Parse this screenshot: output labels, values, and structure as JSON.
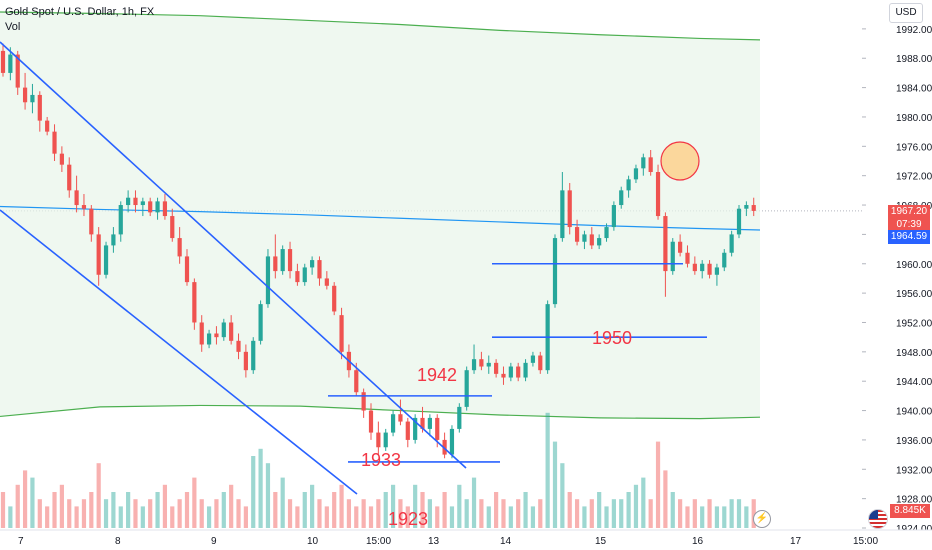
{
  "header": {
    "symbol": "Gold Spot / U.S. Dollar, 1h, FX",
    "volume_label": "Vol",
    "currency": "USD"
  },
  "price_badges": {
    "last_price": "1967.20",
    "countdown": "07:39",
    "ma_value": "1964.59",
    "volume_value": "8.845K"
  },
  "colors": {
    "up": "#26a69a",
    "down": "#ef5350",
    "trendline": "#2962ff",
    "level_line": "#2962ff",
    "annotation_text": "#f23645",
    "ma_line": "#2196f3",
    "envelope_line": "#4caf50",
    "envelope_fill": "#e8f5e9",
    "highlight_circle_fill": "#ffcc80",
    "highlight_circle_border": "#f23645",
    "price_badge_up": "#ef5350",
    "price_badge_ma": "#2962ff"
  },
  "icons": {
    "flag": "us-flag-icon",
    "lightning": "lightning-icon"
  },
  "chart_data": {
    "type": "candlestick",
    "price_axis": {
      "ticks": [
        1992,
        1988,
        1984,
        1980,
        1976,
        1972,
        1968,
        1964,
        1960,
        1956,
        1952,
        1948,
        1944,
        1940,
        1936,
        1932,
        1928,
        1924
      ],
      "tick_labels": [
        "1992.00",
        "1988.00",
        "1984.00",
        "1980.00",
        "1976.00",
        "1972.00",
        "1968.00",
        "",
        "1960.00",
        "1956.00",
        "1952.00",
        "1948.00",
        "1944.00",
        "1940.00",
        "1936.00",
        "1932.00",
        "1928.00",
        "1924.00"
      ],
      "range": [
        1923.5,
        1994.5
      ]
    },
    "time_axis": {
      "labels": [
        "7",
        "8",
        "9",
        "10",
        "15:00",
        "13",
        "14",
        "15",
        "16",
        "17",
        "15:00"
      ]
    },
    "annotations": [
      {
        "text": "1942",
        "price": 1942
      },
      {
        "text": "1933",
        "price": 1933
      },
      {
        "text": "1923",
        "price": 1923
      },
      {
        "text": "1950",
        "price": 1950
      }
    ],
    "horizontal_levels": [
      {
        "price": 1942
      },
      {
        "price": 1933
      },
      {
        "price": 1960
      },
      {
        "price": 1950
      }
    ],
    "ohlc": [
      [
        1989.0,
        1990.0,
        1985.5,
        1986.0
      ],
      [
        1986.0,
        1989.5,
        1985.0,
        1988.5
      ],
      [
        1988.5,
        1989.0,
        1983.0,
        1984.0
      ],
      [
        1984.0,
        1986.0,
        1981.0,
        1982.0
      ],
      [
        1982.0,
        1984.5,
        1980.5,
        1983.0
      ],
      [
        1983.0,
        1983.5,
        1978.0,
        1979.5
      ],
      [
        1979.5,
        1980.0,
        1977.5,
        1978.0
      ],
      [
        1978.0,
        1979.0,
        1974.0,
        1975.0
      ],
      [
        1975.0,
        1976.0,
        1972.5,
        1973.5
      ],
      [
        1973.5,
        1974.5,
        1969.0,
        1970.0
      ],
      [
        1970.0,
        1972.0,
        1967.0,
        1968.0
      ],
      [
        1968.0,
        1969.5,
        1966.5,
        1967.5
      ],
      [
        1967.5,
        1968.0,
        1963.0,
        1964.0
      ],
      [
        1964.0,
        1965.0,
        1957.0,
        1958.5
      ],
      [
        1958.5,
        1963.0,
        1958.0,
        1962.5
      ],
      [
        1962.5,
        1965.0,
        1961.5,
        1964.0
      ],
      [
        1964.0,
        1968.5,
        1963.0,
        1968.0
      ],
      [
        1968.0,
        1970.0,
        1967.0,
        1969.0
      ],
      [
        1969.0,
        1970.0,
        1967.0,
        1968.0
      ],
      [
        1968.0,
        1969.0,
        1966.5,
        1968.5
      ],
      [
        1968.5,
        1969.0,
        1966.5,
        1967.0
      ],
      [
        1967.0,
        1969.0,
        1966.0,
        1968.5
      ],
      [
        1968.5,
        1969.5,
        1966.0,
        1966.5
      ],
      [
        1966.5,
        1967.5,
        1963.0,
        1963.5
      ],
      [
        1963.5,
        1965.0,
        1960.0,
        1961.0
      ],
      [
        1961.0,
        1962.0,
        1957.0,
        1957.5
      ],
      [
        1957.5,
        1958.0,
        1951.0,
        1952.0
      ],
      [
        1952.0,
        1953.0,
        1948.0,
        1949.0
      ],
      [
        1949.0,
        1951.0,
        1948.5,
        1950.5
      ],
      [
        1950.5,
        1951.5,
        1949.0,
        1950.0
      ],
      [
        1950.0,
        1952.5,
        1949.5,
        1952.0
      ],
      [
        1952.0,
        1953.0,
        1949.0,
        1949.5
      ],
      [
        1949.5,
        1950.5,
        1947.0,
        1948.0
      ],
      [
        1948.0,
        1949.0,
        1944.5,
        1945.5
      ],
      [
        1945.5,
        1950.0,
        1945.0,
        1949.5
      ],
      [
        1949.5,
        1955.0,
        1949.0,
        1954.5
      ],
      [
        1954.5,
        1962.0,
        1954.0,
        1961.0
      ],
      [
        1961.0,
        1964.0,
        1958.0,
        1959.0
      ],
      [
        1959.0,
        1962.5,
        1958.5,
        1962.0
      ],
      [
        1962.0,
        1963.0,
        1958.0,
        1959.0
      ],
      [
        1959.0,
        1960.0,
        1957.0,
        1957.5
      ],
      [
        1957.5,
        1960.0,
        1957.0,
        1959.5
      ],
      [
        1959.5,
        1961.0,
        1958.5,
        1960.5
      ],
      [
        1960.5,
        1961.0,
        1957.0,
        1958.0
      ],
      [
        1958.0,
        1959.0,
        1956.5,
        1957.0
      ],
      [
        1957.0,
        1957.5,
        1953.0,
        1953.5
      ],
      [
        1953.0,
        1954.0,
        1947.0,
        1948.0
      ],
      [
        1948.0,
        1949.0,
        1944.5,
        1945.5
      ],
      [
        1945.5,
        1946.5,
        1942.0,
        1942.5
      ],
      [
        1942.5,
        1943.0,
        1939.0,
        1940.0
      ],
      [
        1940.0,
        1941.0,
        1936.0,
        1937.0
      ],
      [
        1937.0,
        1938.5,
        1934.0,
        1935.0
      ],
      [
        1935.0,
        1937.5,
        1934.5,
        1937.0
      ],
      [
        1937.0,
        1940.0,
        1936.5,
        1939.5
      ],
      [
        1939.5,
        1941.5,
        1938.0,
        1938.5
      ],
      [
        1938.5,
        1939.0,
        1935.0,
        1936.0
      ],
      [
        1936.0,
        1939.5,
        1935.5,
        1939.0
      ],
      [
        1939.0,
        1940.5,
        1937.0,
        1937.5
      ],
      [
        1937.5,
        1939.5,
        1936.5,
        1939.0
      ],
      [
        1939.0,
        1939.5,
        1935.0,
        1936.0
      ],
      [
        1936.0,
        1937.0,
        1933.5,
        1934.0
      ],
      [
        1934.0,
        1938.0,
        1933.5,
        1937.5
      ],
      [
        1937.5,
        1941.0,
        1937.0,
        1940.5
      ],
      [
        1940.5,
        1946.0,
        1940.0,
        1945.5
      ],
      [
        1945.5,
        1949.0,
        1945.0,
        1947.0
      ],
      [
        1947.0,
        1948.0,
        1945.5,
        1946.0
      ],
      [
        1946.0,
        1947.5,
        1945.0,
        1946.5
      ],
      [
        1946.5,
        1947.0,
        1944.5,
        1945.0
      ],
      [
        1945.0,
        1946.0,
        1943.5,
        1944.5
      ],
      [
        1944.5,
        1946.5,
        1944.0,
        1946.0
      ],
      [
        1946.0,
        1946.5,
        1944.0,
        1944.5
      ],
      [
        1944.5,
        1947.0,
        1944.0,
        1946.5
      ],
      [
        1946.5,
        1948.0,
        1946.0,
        1947.5
      ],
      [
        1947.5,
        1948.0,
        1945.0,
        1945.5
      ],
      [
        1945.5,
        1955.0,
        1945.0,
        1954.5
      ],
      [
        1954.5,
        1964.0,
        1954.0,
        1963.5
      ],
      [
        1963.5,
        1972.5,
        1963.0,
        1970.0
      ],
      [
        1970.0,
        1971.0,
        1964.0,
        1965.0
      ],
      [
        1965.0,
        1966.0,
        1962.5,
        1963.0
      ],
      [
        1963.0,
        1964.5,
        1962.0,
        1964.0
      ],
      [
        1964.0,
        1965.0,
        1962.0,
        1962.5
      ],
      [
        1962.5,
        1964.0,
        1962.0,
        1963.5
      ],
      [
        1963.5,
        1965.5,
        1963.0,
        1965.0
      ],
      [
        1965.0,
        1968.5,
        1964.5,
        1968.0
      ],
      [
        1968.0,
        1970.5,
        1967.5,
        1970.0
      ],
      [
        1970.0,
        1972.0,
        1969.0,
        1971.5
      ],
      [
        1971.5,
        1973.5,
        1971.0,
        1973.0
      ],
      [
        1973.0,
        1975.0,
        1972.0,
        1974.5
      ],
      [
        1974.5,
        1975.5,
        1972.0,
        1972.5
      ],
      [
        1972.5,
        1973.5,
        1966.0,
        1966.5
      ],
      [
        1966.5,
        1967.0,
        1955.5,
        1959.0
      ],
      [
        1959.0,
        1963.5,
        1958.5,
        1963.0
      ],
      [
        1963.0,
        1964.0,
        1961.0,
        1961.5
      ],
      [
        1961.5,
        1962.5,
        1959.5,
        1960.0
      ],
      [
        1960.0,
        1961.0,
        1958.5,
        1959.0
      ],
      [
        1959.0,
        1960.5,
        1958.0,
        1960.0
      ],
      [
        1960.0,
        1960.5,
        1958.0,
        1958.5
      ],
      [
        1958.5,
        1960.0,
        1957.0,
        1959.5
      ],
      [
        1959.5,
        1962.0,
        1959.0,
        1961.5
      ],
      [
        1961.5,
        1964.5,
        1961.0,
        1964.0
      ],
      [
        1964.0,
        1968.0,
        1963.5,
        1967.5
      ],
      [
        1967.5,
        1968.5,
        1966.5,
        1968.0
      ],
      [
        1968.0,
        1969.0,
        1966.5,
        1967.2
      ]
    ],
    "volume": [
      5,
      3,
      6,
      8,
      7,
      4,
      3,
      5,
      6,
      4,
      3,
      4,
      5,
      9,
      4,
      5,
      3,
      5,
      4,
      3,
      4,
      5,
      6,
      3,
      4,
      5,
      7,
      4,
      3,
      4,
      5,
      6,
      4,
      3,
      10,
      11,
      9,
      5,
      7,
      4,
      3,
      5,
      6,
      4,
      3,
      5,
      6,
      4,
      3,
      4,
      3,
      4,
      5,
      6,
      4,
      3,
      6,
      5,
      4,
      3,
      5,
      3,
      6,
      4,
      7,
      4,
      3,
      5,
      4,
      3,
      4,
      5,
      3,
      4,
      16,
      12,
      9,
      5,
      4,
      3,
      4,
      5,
      3,
      4,
      4,
      5,
      6,
      7,
      4,
      12,
      8,
      5,
      4,
      3,
      4,
      3,
      4,
      3,
      3,
      4,
      4,
      3,
      4
    ]
  }
}
